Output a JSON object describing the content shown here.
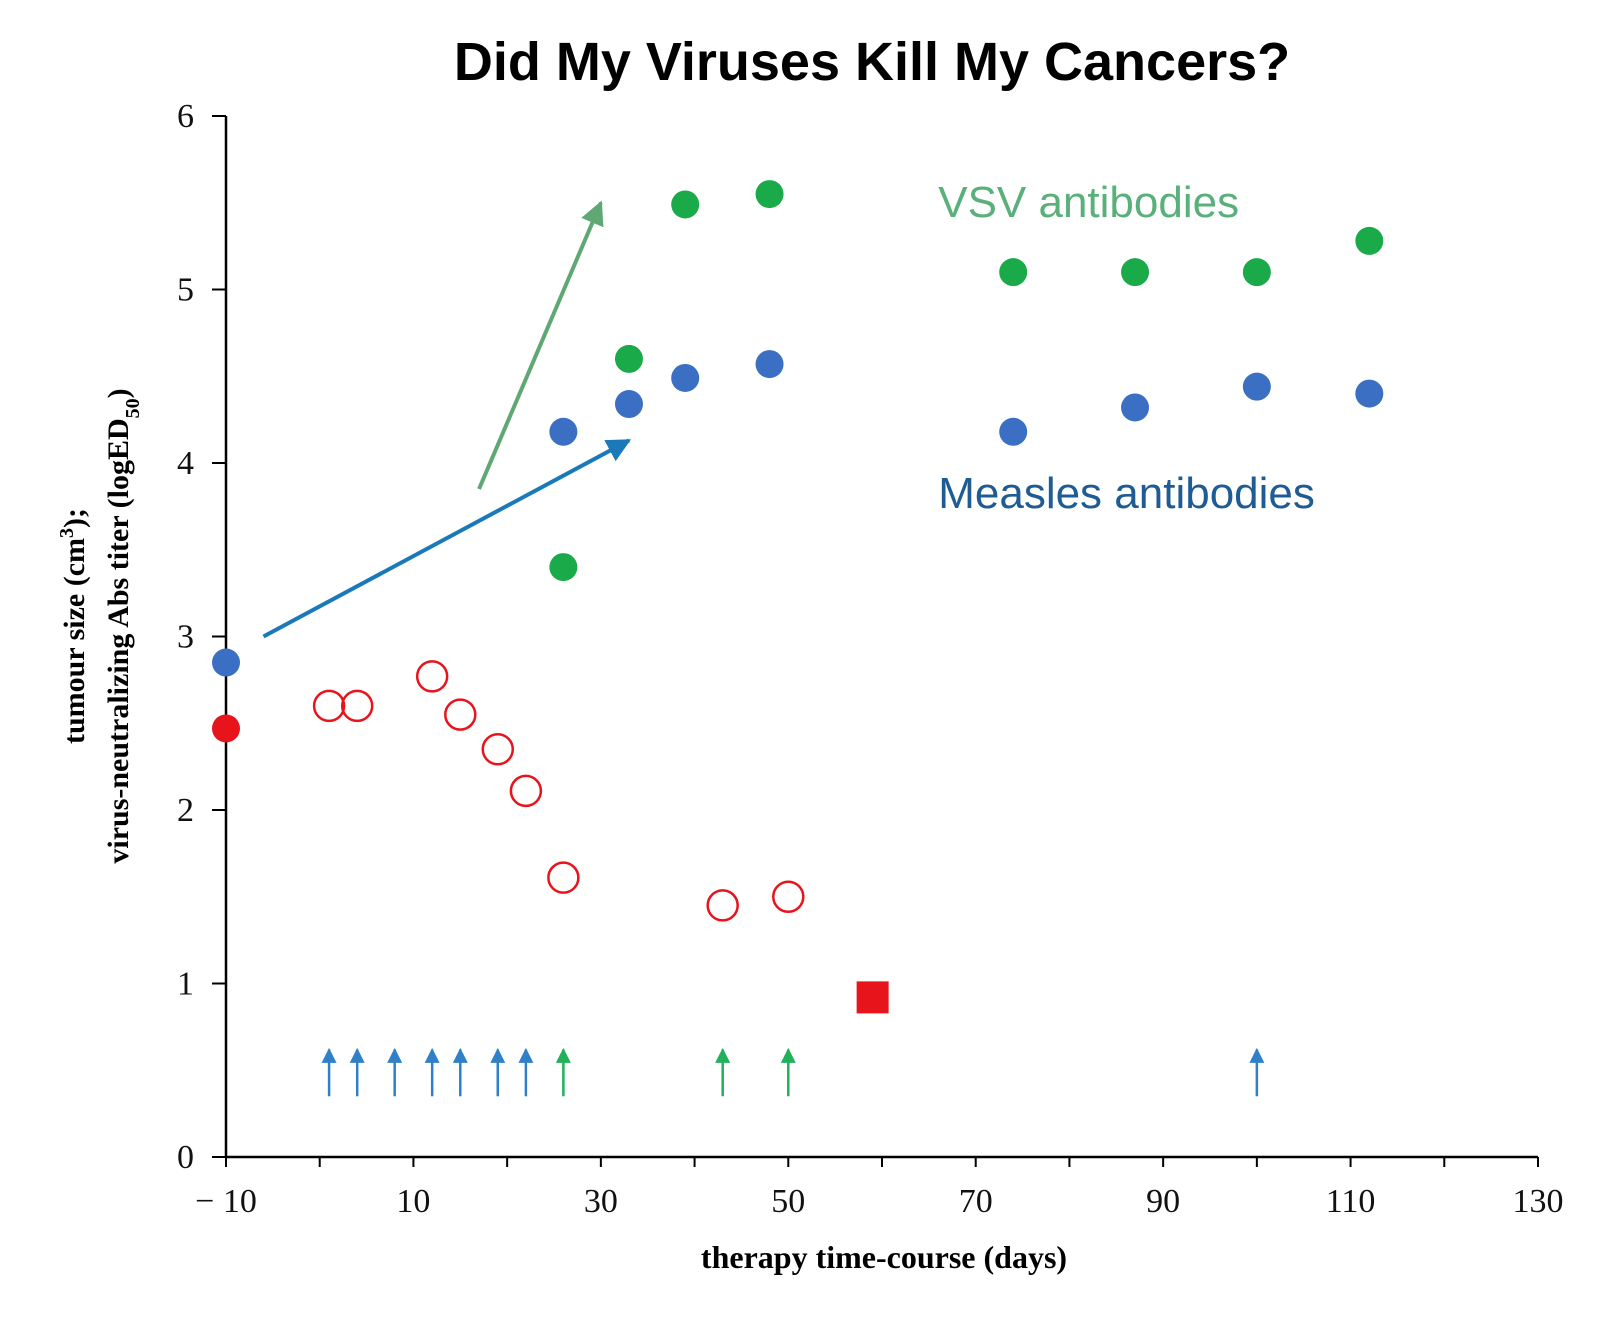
{
  "chart_data": {
    "type": "scatter",
    "title": "Did My Viruses Kill My Cancers?",
    "xlabel": "therapy time-course (days)",
    "ylabel_line1_main": "tumour size (cm",
    "ylabel_line1_sup": "3",
    "ylabel_line1_end": ");",
    "ylabel_line2_main": "virus-neutralizing Abs titer (logED",
    "ylabel_line2_sub": "50",
    "ylabel_line2_end": ")",
    "xlim": [
      -10,
      130
    ],
    "ylim": [
      0,
      6
    ],
    "xticks": [
      -10,
      10,
      30,
      50,
      70,
      90,
      110,
      130
    ],
    "xtick_labels": [
      "− 10",
      "10",
      "30",
      "50",
      "70",
      "90",
      "110",
      "130"
    ],
    "yticks": [
      0,
      1,
      2,
      3,
      4,
      5,
      6
    ],
    "ytick_labels": [
      "0",
      "1",
      "2",
      "3",
      "4",
      "5",
      "6"
    ],
    "grid": false,
    "colors": {
      "vsv": "#1aaa4a",
      "measles": "#3a6fc4",
      "tumour": "#e8141c",
      "vsv_arrow": "#5fa874",
      "measles_arrow": "#1a79b8",
      "vsv_label": "#5ab07a",
      "measles_label": "#1e5c93",
      "measles_dose": "#2f80c8",
      "vsv_dose": "#1fb25a"
    },
    "series": [
      {
        "name": "VSV antibodies",
        "marker": "filled-circle",
        "points": [
          [
            26,
            3.4
          ],
          [
            33,
            4.6
          ],
          [
            39,
            5.49
          ],
          [
            48,
            5.55
          ],
          [
            74,
            5.1
          ],
          [
            87,
            5.1
          ],
          [
            100,
            5.1
          ],
          [
            112,
            5.28
          ]
        ]
      },
      {
        "name": "Measles antibodies",
        "marker": "filled-circle",
        "points": [
          [
            -10,
            2.85
          ],
          [
            26,
            4.18
          ],
          [
            33,
            4.34
          ],
          [
            39,
            4.49
          ],
          [
            48,
            4.57
          ],
          [
            74,
            4.18
          ],
          [
            87,
            4.32
          ],
          [
            100,
            4.44
          ],
          [
            112,
            4.4
          ]
        ]
      },
      {
        "marker": "filled-circle",
        "points": [
          [
            -10,
            2.47
          ]
        ]
      },
      {
        "marker": "open-circle",
        "points": [
          [
            1,
            2.6
          ],
          [
            4,
            2.6
          ],
          [
            12,
            2.77
          ],
          [
            15,
            2.55
          ],
          [
            19,
            2.35
          ],
          [
            22,
            2.11
          ],
          [
            26,
            1.61
          ],
          [
            43,
            1.45
          ],
          [
            50,
            1.5
          ]
        ]
      },
      {
        "marker": "square",
        "points": [
          [
            59,
            0.92
          ]
        ]
      }
    ],
    "dose_arrows": {
      "measles": [
        1,
        4,
        8,
        12,
        15,
        19,
        22,
        100
      ],
      "vsv": [
        26,
        43,
        50
      ]
    },
    "annotations": [
      {
        "text": "VSV antibodies",
        "x": 66,
        "y": 5.5
      },
      {
        "text": "Measles antibodies",
        "x": 66,
        "y": 3.82
      }
    ],
    "trend_arrows": [
      {
        "series": "VSV antibodies",
        "from": [
          17,
          3.85
        ],
        "to": [
          30,
          5.5
        ]
      },
      {
        "series": "Measles antibodies",
        "from": [
          -6,
          3.0
        ],
        "to": [
          33,
          4.13
        ]
      }
    ]
  }
}
